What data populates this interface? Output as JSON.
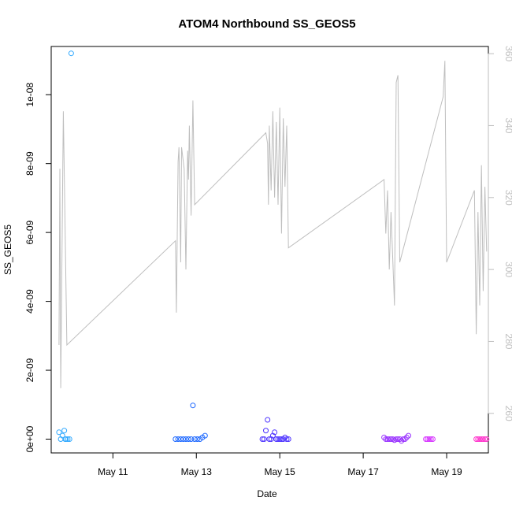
{
  "chart_data": {
    "type": "scatter",
    "title": "ATOM4 Northbound SS_GEOS5",
    "xlabel": "Date",
    "ylabel": "SS_GEOS5",
    "xlim": [
      "2016-05-09T12:30",
      "2016-05-20T00:00"
    ],
    "ylim": [
      -4e-10,
      1.14e-08
    ],
    "y2lim": [
      249,
      362
    ],
    "x_ticks": [
      {
        "x": "2016-05-11T00:00",
        "label": "May 11"
      },
      {
        "x": "2016-05-13T00:00",
        "label": "May 13"
      },
      {
        "x": "2016-05-15T00:00",
        "label": "May 15"
      },
      {
        "x": "2016-05-17T00:00",
        "label": "May 17"
      },
      {
        "x": "2016-05-19T00:00",
        "label": "May 19"
      }
    ],
    "y_ticks": [
      {
        "y": 0,
        "label": "0e+00"
      },
      {
        "y": 2e-09,
        "label": "2e-09"
      },
      {
        "y": 4e-09,
        "label": "4e-09"
      },
      {
        "y": 6e-09,
        "label": "6e-09"
      },
      {
        "y": 8e-09,
        "label": "8e-09"
      },
      {
        "y": 1e-08,
        "label": "1e-08"
      }
    ],
    "y2_ticks": [
      {
        "y": 260,
        "label": "260"
      },
      {
        "y": 280,
        "label": "280"
      },
      {
        "y": 300,
        "label": "300"
      },
      {
        "y": 320,
        "label": "320"
      },
      {
        "y": 340,
        "label": "340"
      },
      {
        "y": 360,
        "label": "360"
      }
    ],
    "line_color": "#bebebe",
    "right_axis_color": "#bebebe",
    "grid": false,
    "series": [
      {
        "color": "#33aaff",
        "points": [
          [
            "2016-05-09T17:00",
            2e-10
          ],
          [
            "2016-05-09T18:00",
            0
          ],
          [
            "2016-05-09T19:00",
            1e-10
          ],
          [
            "2016-05-09T20:00",
            2.5e-10
          ],
          [
            "2016-05-09T20:30",
            0
          ],
          [
            "2016-05-09T21:00",
            0
          ],
          [
            "2016-05-09T22:00",
            0
          ],
          [
            "2016-05-09T23:00",
            0
          ],
          [
            "2016-05-10T00:00",
            1.12e-08
          ]
        ]
      },
      {
        "color": "#1a66ff",
        "points": [
          [
            "2016-05-12T12:00",
            0
          ],
          [
            "2016-05-12T13:30",
            0
          ],
          [
            "2016-05-12T15:00",
            0
          ],
          [
            "2016-05-12T16:30",
            0
          ],
          [
            "2016-05-12T18:00",
            0
          ],
          [
            "2016-05-12T19:30",
            0
          ],
          [
            "2016-05-12T21:00",
            0
          ],
          [
            "2016-05-12T22:00",
            9.8e-10
          ],
          [
            "2016-05-12T23:00",
            0
          ],
          [
            "2016-05-13T00:30",
            0
          ],
          [
            "2016-05-13T02:00",
            0
          ],
          [
            "2016-05-13T03:30",
            5e-11
          ],
          [
            "2016-05-13T05:00",
            1e-10
          ]
        ]
      },
      {
        "color": "#4d33ff",
        "points": [
          [
            "2016-05-14T14:00",
            0
          ],
          [
            "2016-05-14T15:00",
            0
          ],
          [
            "2016-05-14T16:00",
            2.5e-10
          ],
          [
            "2016-05-14T17:00",
            5.6e-10
          ],
          [
            "2016-05-14T18:00",
            0
          ],
          [
            "2016-05-14T19:00",
            0
          ],
          [
            "2016-05-14T20:00",
            1e-10
          ],
          [
            "2016-05-14T21:00",
            2e-10
          ],
          [
            "2016-05-14T22:00",
            0
          ],
          [
            "2016-05-14T23:00",
            0
          ],
          [
            "2016-05-15T00:00",
            0
          ],
          [
            "2016-05-15T01:00",
            0
          ],
          [
            "2016-05-15T02:00",
            0
          ],
          [
            "2016-05-15T03:00",
            5e-11
          ],
          [
            "2016-05-15T04:00",
            0
          ],
          [
            "2016-05-15T05:00",
            0
          ]
        ]
      },
      {
        "color": "#9933ff",
        "points": [
          [
            "2016-05-17T12:00",
            5e-11
          ],
          [
            "2016-05-17T13:00",
            0
          ],
          [
            "2016-05-17T14:00",
            0
          ],
          [
            "2016-05-17T15:00",
            0
          ],
          [
            "2016-05-17T16:00",
            0
          ],
          [
            "2016-05-17T17:00",
            0
          ],
          [
            "2016-05-17T18:00",
            -3e-11
          ],
          [
            "2016-05-17T19:00",
            0
          ],
          [
            "2016-05-17T20:00",
            0
          ],
          [
            "2016-05-17T21:00",
            0
          ],
          [
            "2016-05-17T22:00",
            -5e-11
          ],
          [
            "2016-05-17T23:00",
            0
          ],
          [
            "2016-05-18T00:00",
            0
          ],
          [
            "2016-05-18T01:00",
            5e-11
          ],
          [
            "2016-05-18T02:00",
            1e-10
          ]
        ]
      },
      {
        "color": "#d633ff",
        "points": [
          [
            "2016-05-18T12:00",
            0
          ],
          [
            "2016-05-18T13:00",
            0
          ],
          [
            "2016-05-18T14:00",
            0
          ],
          [
            "2016-05-18T15:00",
            0
          ],
          [
            "2016-05-18T16:00",
            0
          ]
        ]
      },
      {
        "color": "#ff33cc",
        "points": [
          [
            "2016-05-19T17:00",
            0
          ],
          [
            "2016-05-19T18:00",
            0
          ],
          [
            "2016-05-19T19:00",
            0
          ],
          [
            "2016-05-19T20:00",
            0
          ],
          [
            "2016-05-19T21:00",
            0
          ],
          [
            "2016-05-19T22:00",
            0
          ],
          [
            "2016-05-19T23:00",
            0
          ]
        ]
      }
    ],
    "line_series": [
      [
        "2016-05-09T17:00",
        279
      ],
      [
        "2016-05-09T17:30",
        328
      ],
      [
        "2016-05-09T18:00",
        267
      ],
      [
        "2016-05-09T19:30",
        344
      ],
      [
        "2016-05-09T21:30",
        279
      ],
      [
        "2016-05-12T12:00",
        308
      ],
      [
        "2016-05-12T12:30",
        288
      ],
      [
        "2016-05-12T13:30",
        330
      ],
      [
        "2016-05-12T14:00",
        334
      ],
      [
        "2016-05-12T15:00",
        302
      ],
      [
        "2016-05-12T15:30",
        334
      ],
      [
        "2016-05-12T17:00",
        328
      ],
      [
        "2016-05-12T18:00",
        300
      ],
      [
        "2016-05-12T19:00",
        333
      ],
      [
        "2016-05-12T19:30",
        325
      ],
      [
        "2016-05-12T20:00",
        340
      ],
      [
        "2016-05-12T21:00",
        315
      ],
      [
        "2016-05-12T22:00",
        347
      ],
      [
        "2016-05-12T23:00",
        318
      ],
      [
        "2016-05-14T16:00",
        338
      ],
      [
        "2016-05-14T17:00",
        335
      ],
      [
        "2016-05-14T17:30",
        318
      ],
      [
        "2016-05-14T18:00",
        340
      ],
      [
        "2016-05-14T19:00",
        322
      ],
      [
        "2016-05-14T20:00",
        344
      ],
      [
        "2016-05-14T21:00",
        320
      ],
      [
        "2016-05-14T22:00",
        341
      ],
      [
        "2016-05-14T23:00",
        318
      ],
      [
        "2016-05-15T00:00",
        345
      ],
      [
        "2016-05-15T01:00",
        310
      ],
      [
        "2016-05-15T02:00",
        342
      ],
      [
        "2016-05-15T03:00",
        323
      ],
      [
        "2016-05-15T04:00",
        340
      ],
      [
        "2016-05-15T05:00",
        306
      ],
      [
        "2016-05-17T12:00",
        325
      ],
      [
        "2016-05-17T13:00",
        310
      ],
      [
        "2016-05-17T14:00",
        322
      ],
      [
        "2016-05-17T15:00",
        300
      ],
      [
        "2016-05-17T16:00",
        316
      ],
      [
        "2016-05-17T17:00",
        303
      ],
      [
        "2016-05-17T18:00",
        290
      ],
      [
        "2016-05-17T19:00",
        352
      ],
      [
        "2016-05-17T20:00",
        354
      ],
      [
        "2016-05-17T21:00",
        302
      ],
      [
        "2016-05-18T22:00",
        348
      ],
      [
        "2016-05-18T23:00",
        358
      ],
      [
        "2016-05-19T00:00",
        302
      ],
      [
        "2016-05-19T16:00",
        322
      ],
      [
        "2016-05-19T17:00",
        282
      ],
      [
        "2016-05-19T18:00",
        316
      ],
      [
        "2016-05-19T19:00",
        290
      ],
      [
        "2016-05-19T20:00",
        329
      ],
      [
        "2016-05-19T21:00",
        294
      ],
      [
        "2016-05-19T22:00",
        323
      ],
      [
        "2016-05-19T23:00",
        305
      ]
    ]
  }
}
